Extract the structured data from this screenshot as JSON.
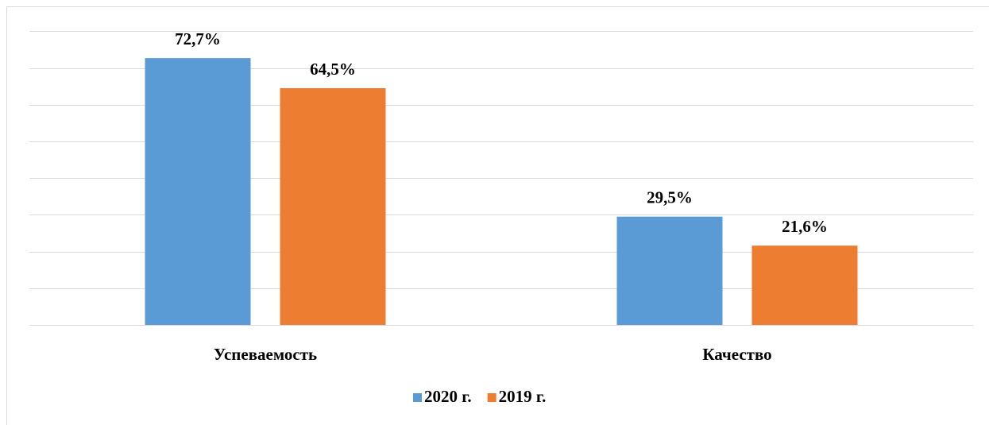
{
  "chart_data": {
    "type": "bar",
    "categories": [
      "Успеваемость",
      "Качество"
    ],
    "series": [
      {
        "name": "2020 г.",
        "color": "#5b9bd5",
        "values": [
          72.7,
          29.5
        ],
        "value_labels": [
          "72,7%",
          "29,5%"
        ]
      },
      {
        "name": "2019 г.",
        "color": "#ed7d31",
        "values": [
          64.5,
          21.6
        ],
        "value_labels": [
          "64,5%",
          "21,6%"
        ]
      }
    ],
    "ylim": [
      0,
      80
    ],
    "yticks": [
      0,
      10,
      20,
      30,
      40,
      50,
      60,
      70,
      80
    ],
    "grid": true,
    "legend": "bottom"
  }
}
